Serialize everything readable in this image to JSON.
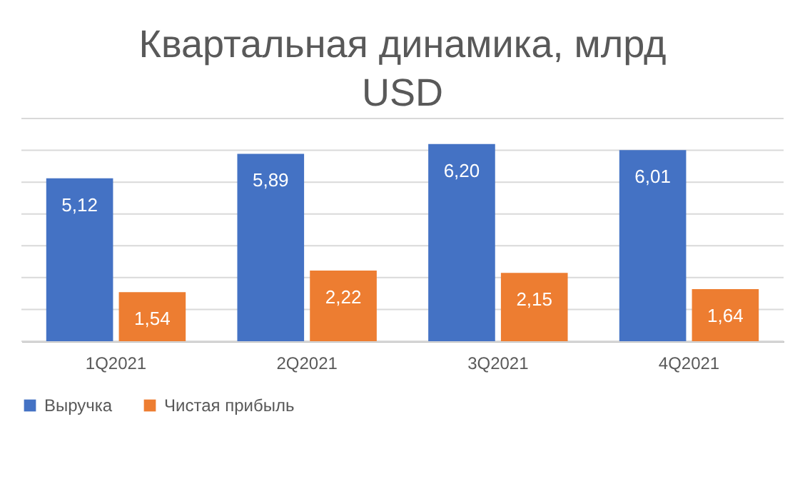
{
  "chart_data": {
    "type": "bar",
    "title": "Квартальная динамика, млрд USD",
    "categories": [
      "1Q2021",
      "2Q2021",
      "3Q2021",
      "4Q2021"
    ],
    "series": [
      {
        "name": "Выручка",
        "color": "#4472c4",
        "values": [
          5.12,
          5.89,
          6.2,
          6.01
        ],
        "value_labels": [
          "5,12",
          "5,89",
          "6,20",
          "6,01"
        ]
      },
      {
        "name": "Чистая прибыль",
        "color": "#ed7d31",
        "values": [
          1.54,
          2.22,
          2.15,
          1.64
        ],
        "value_labels": [
          "1,54",
          "2,22",
          "2,15",
          "1,64"
        ]
      }
    ],
    "ylim": [
      0,
      7
    ],
    "yticks": [
      {
        "value": 0,
        "label": null
      },
      {
        "value": 1,
        "label": null
      },
      {
        "value": 2,
        "label": null
      },
      {
        "value": 3,
        "label": null
      },
      {
        "value": 4,
        "label": null
      },
      {
        "value": 5,
        "label": null
      },
      {
        "value": 6,
        "label": null
      },
      {
        "value": 7,
        "label": null
      }
    ],
    "tick_labels": "x",
    "grid": "y",
    "legend": "bottom"
  }
}
